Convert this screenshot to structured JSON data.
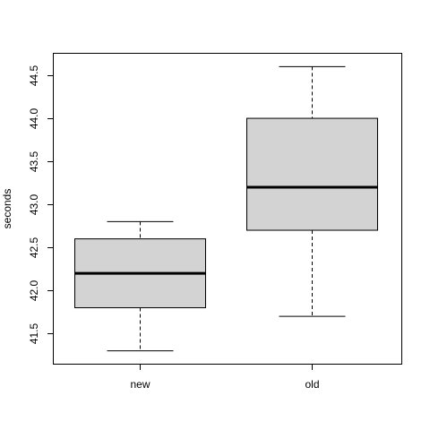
{
  "chart_data": {
    "type": "box",
    "ylabel": "seconds",
    "ylim": [
      41.15,
      44.75
    ],
    "yticks": [
      "41.5",
      "42.0",
      "42.5",
      "43.0",
      "43.5",
      "44.0",
      "44.5"
    ],
    "groups": [
      {
        "label": "new",
        "min": 41.3,
        "q1": 41.8,
        "median": 42.2,
        "q3": 42.6,
        "max": 42.8
      },
      {
        "label": "old",
        "min": 41.7,
        "q1": 42.7,
        "median": 43.2,
        "q3": 44.0,
        "max": 44.6
      }
    ],
    "colors": {
      "box_fill": "#d3d3d3",
      "stroke": "#000000"
    }
  }
}
